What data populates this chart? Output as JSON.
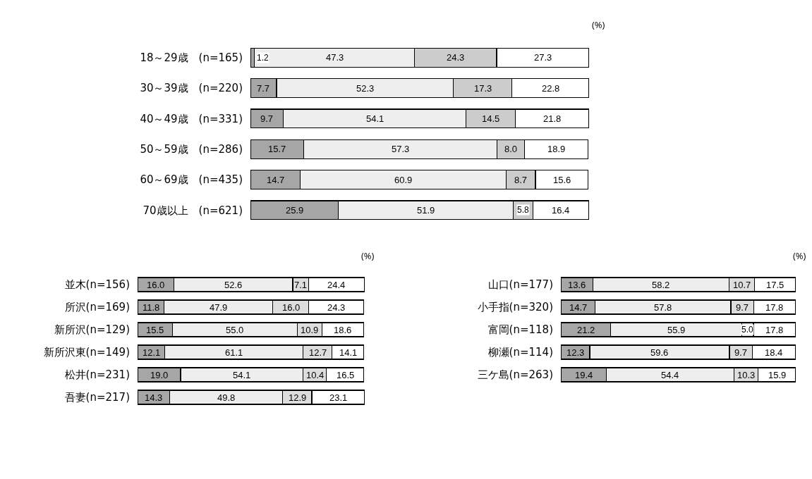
{
  "chart_data": [
    {
      "type": "bar",
      "orientation": "horizontal",
      "stacked": true,
      "tick_labels": "y",
      "grid": false,
      "annotations": [
        "(%)"
      ],
      "categories": [
        "18～29歳　(n=165)",
        "30～39歳　(n=220)",
        "40～49歳　(n=331)",
        "50～59歳　(n=286)",
        "60～69歳　(n=435)",
        "70歳以上　(n=621)"
      ],
      "series": [
        {
          "color": "#a6a6a6",
          "values": [
            1.2,
            7.7,
            9.7,
            15.7,
            14.7,
            25.9
          ],
          "value_labels": [
            "1.2",
            "7.7",
            "9.7",
            "15.7",
            "14.7",
            "25.9"
          ]
        },
        {
          "color": "#eeeeee",
          "values": [
            47.3,
            52.3,
            54.1,
            57.3,
            60.9,
            51.9
          ],
          "value_labels": [
            "47.3",
            "52.3",
            "54.1",
            "57.3",
            "60.9",
            "51.9"
          ]
        },
        {
          "color": "#cccccc",
          "values": [
            24.3,
            17.3,
            14.5,
            8.0,
            8.7,
            5.8
          ],
          "value_labels": [
            "24.3",
            "17.3",
            "14.5",
            "8.0",
            "8.7",
            "5.8"
          ]
        },
        {
          "color": "#ffffff",
          "values": [
            27.3,
            22.8,
            21.8,
            18.9,
            15.6,
            16.4
          ],
          "value_labels": [
            "27.3",
            "22.8",
            "21.8",
            "18.9",
            "15.6",
            "16.4"
          ]
        }
      ]
    },
    {
      "type": "bar",
      "orientation": "horizontal",
      "stacked": true,
      "tick_labels": "y",
      "grid": false,
      "annotations": [
        "(%)"
      ],
      "categories": [
        "並木(n=156)",
        "所沢(n=169)",
        "新所沢(n=129)",
        "新所沢東(n=149)",
        "松井(n=231)",
        "吾妻(n=217)"
      ],
      "series": [
        {
          "color": "#a6a6a6",
          "values": [
            16.0,
            11.8,
            15.5,
            12.1,
            19.0,
            14.3
          ],
          "value_labels": [
            "16.0",
            "11.8",
            "15.5",
            "12.1",
            "19.0",
            "14.3"
          ]
        },
        {
          "color": "#eeeeee",
          "values": [
            52.6,
            47.9,
            55.0,
            61.1,
            54.1,
            49.8
          ],
          "value_labels": [
            "52.6",
            "47.9",
            "55.0",
            "61.1",
            "54.1",
            "49.8"
          ]
        },
        {
          "color": "#dddddd",
          "values": [
            7.1,
            16.0,
            10.9,
            12.7,
            10.4,
            12.9
          ],
          "value_labels": [
            "7.1",
            "16.0",
            "10.9",
            "12.7",
            "10.4",
            "12.9"
          ]
        },
        {
          "color": "#ffffff",
          "values": [
            24.4,
            24.3,
            18.6,
            14.1,
            16.5,
            23.1
          ],
          "value_labels": [
            "24.4",
            "24.3",
            "18.6",
            "14.1",
            "16.5",
            "23.1"
          ]
        }
      ]
    },
    {
      "type": "bar",
      "orientation": "horizontal",
      "stacked": true,
      "tick_labels": "y",
      "grid": false,
      "annotations": [
        "(%)"
      ],
      "categories": [
        "山口(n=177)",
        "小手指(n=320)",
        "富岡(n=118)",
        "柳瀬(n=114)",
        "三ケ島(n=263)"
      ],
      "series": [
        {
          "color": "#a6a6a6",
          "values": [
            13.6,
            14.7,
            21.2,
            12.3,
            19.4
          ],
          "value_labels": [
            "13.6",
            "14.7",
            "21.2",
            "12.3",
            "19.4"
          ]
        },
        {
          "color": "#eeeeee",
          "values": [
            58.2,
            57.8,
            55.9,
            59.6,
            54.4
          ],
          "value_labels": [
            "58.2",
            "57.8",
            "55.9",
            "59.6",
            "54.4"
          ]
        },
        {
          "color": "#dddddd",
          "values": [
            10.7,
            9.7,
            5.0,
            9.7,
            10.3
          ],
          "value_labels": [
            "10.7",
            "9.7",
            "5.0",
            "9.7",
            "10.3"
          ]
        },
        {
          "color": "#ffffff",
          "values": [
            17.5,
            17.8,
            17.8,
            18.4,
            15.9
          ],
          "value_labels": [
            "17.5",
            "17.8",
            "17.8",
            "18.4",
            "15.9"
          ]
        }
      ]
    }
  ]
}
